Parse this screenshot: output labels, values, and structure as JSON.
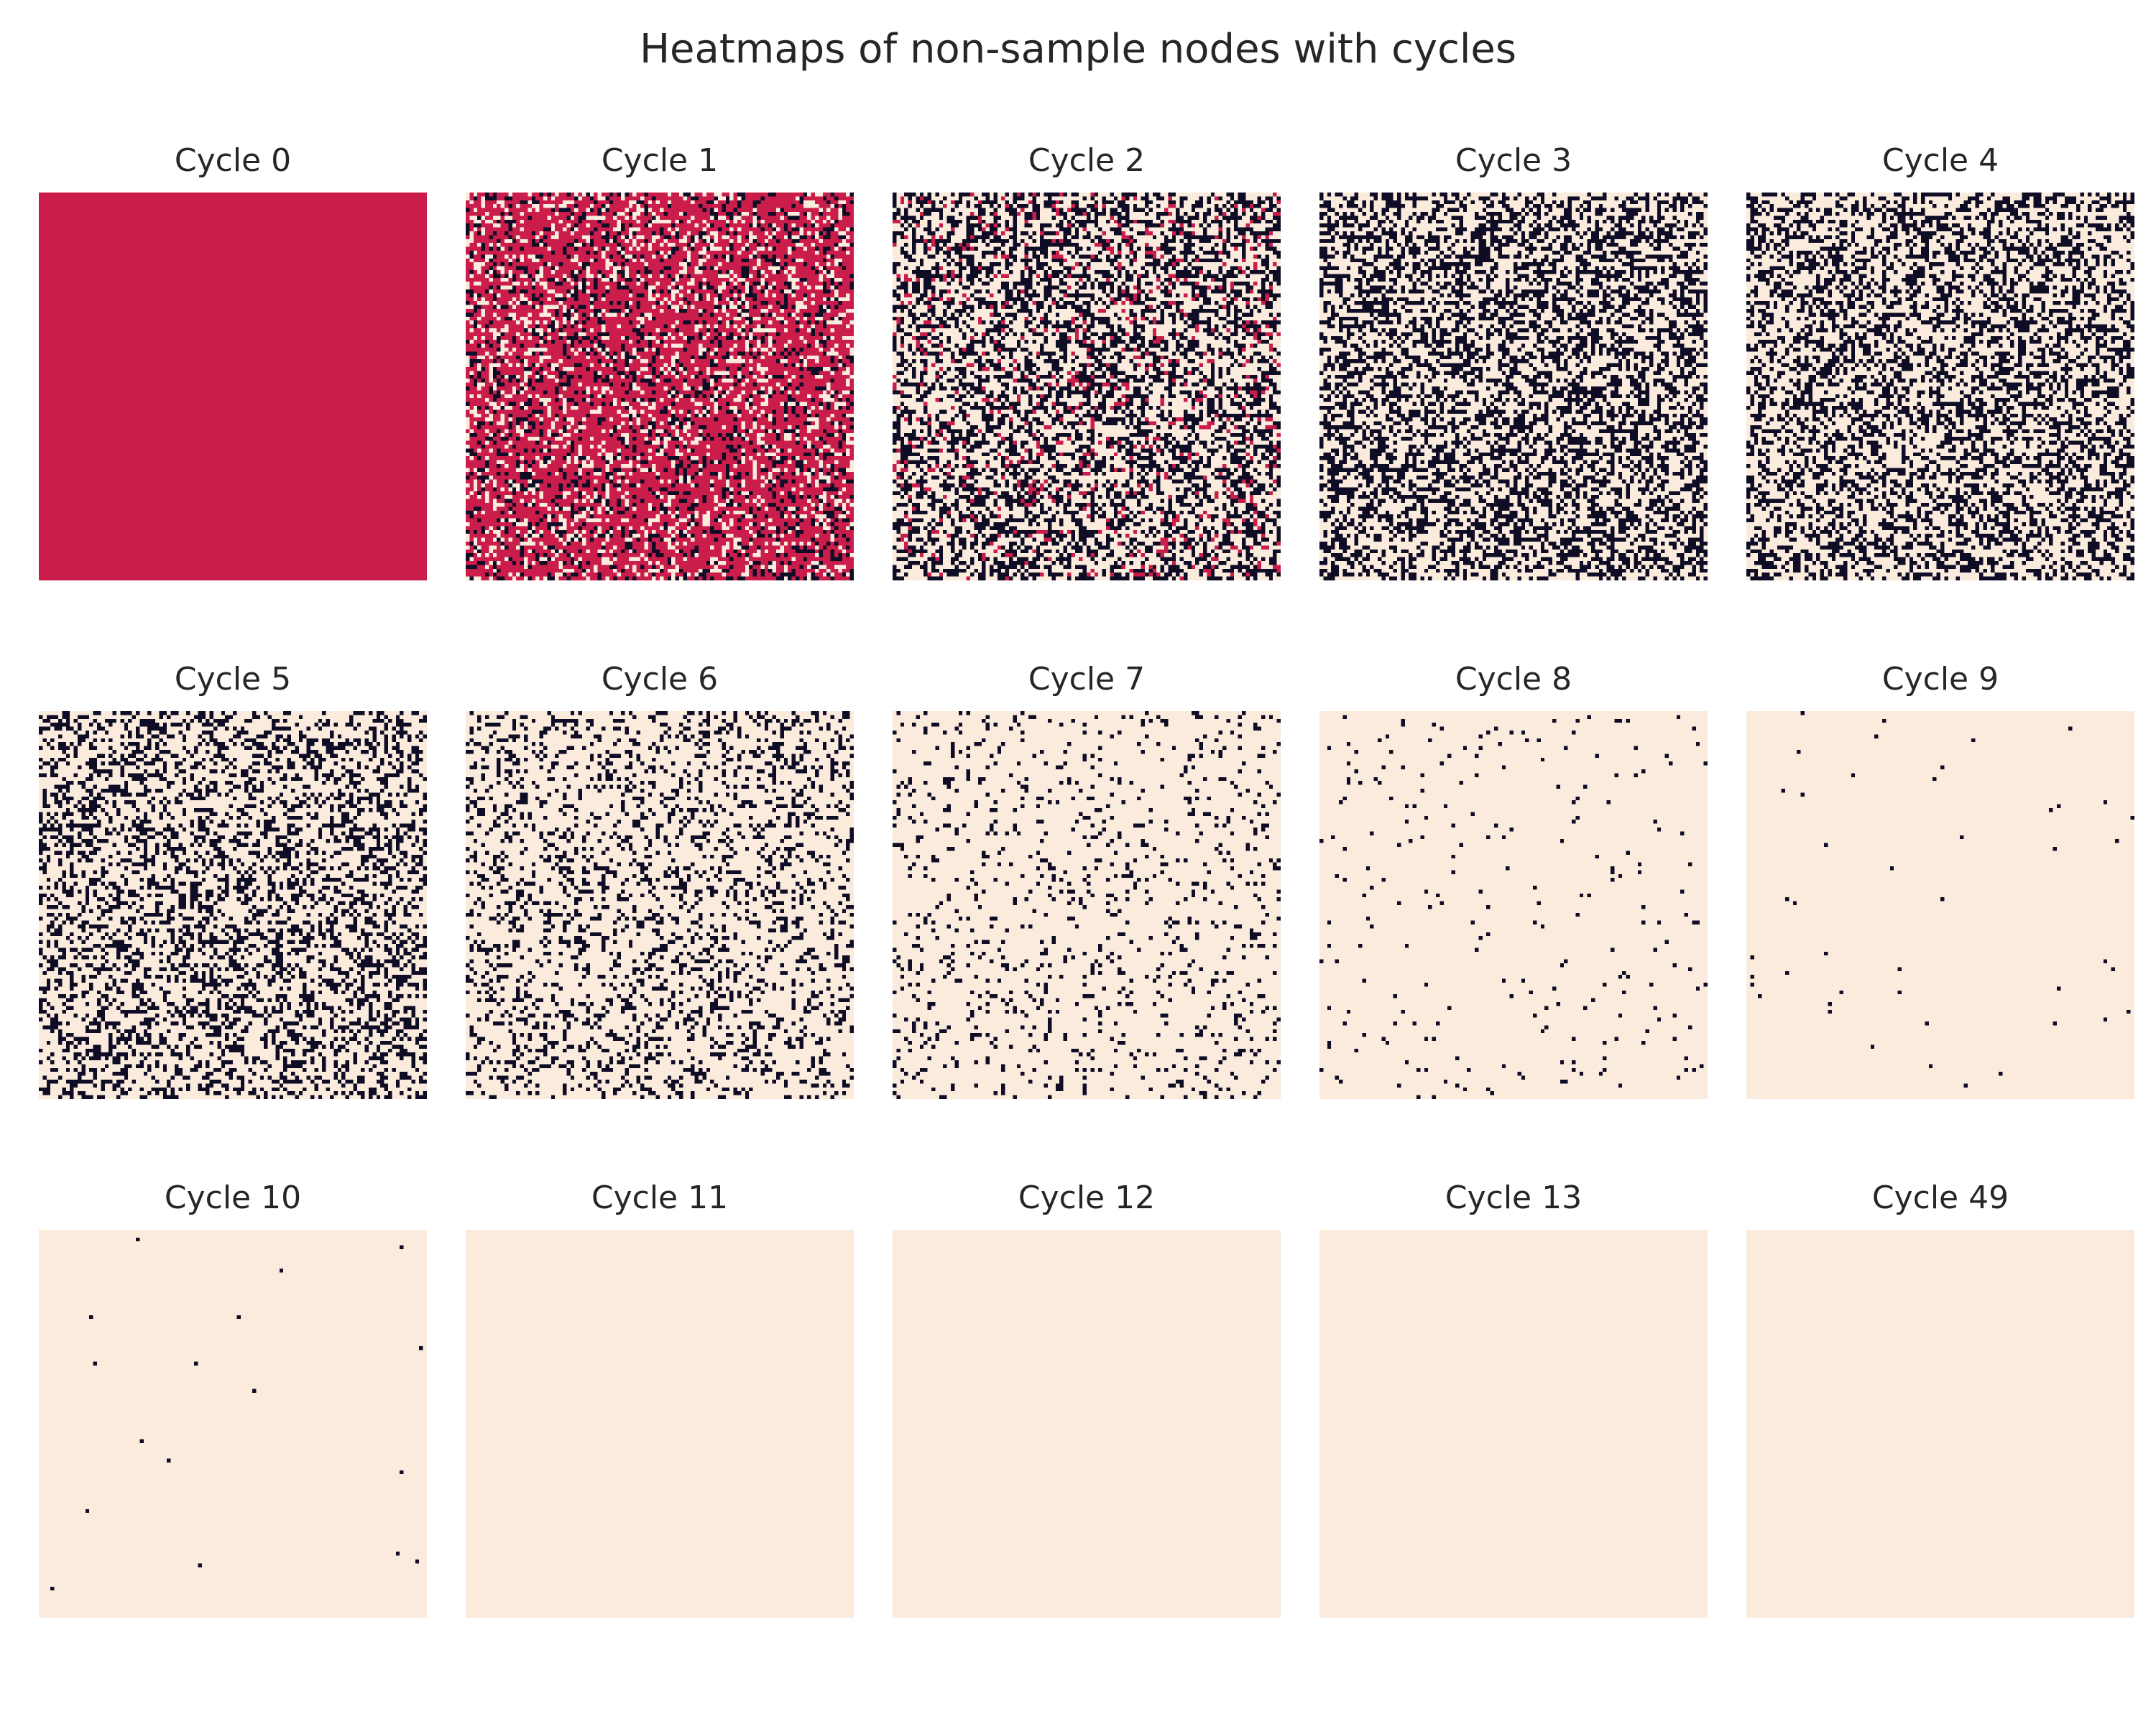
{
  "chart_data": {
    "type": "heatmap",
    "title": "Heatmaps of non-sample nodes with cycles",
    "grid_size": [
      100,
      100
    ],
    "axes_visible": false,
    "colorbar": false,
    "colors": {
      "dark": "#0f0c25",
      "red": "#cb1d4c",
      "light": "#faebdd"
    },
    "panels": [
      {
        "title": "Cycle 0",
        "fractions": {
          "dark": 0.0,
          "red": 1.0,
          "light": 0.0
        }
      },
      {
        "title": "Cycle 1",
        "fractions": {
          "dark": 0.18,
          "red": 0.62,
          "light": 0.2
        }
      },
      {
        "title": "Cycle 2",
        "fractions": {
          "dark": 0.4,
          "red": 0.08,
          "light": 0.52
        }
      },
      {
        "title": "Cycle 3",
        "fractions": {
          "dark": 0.45,
          "red": 0.0,
          "light": 0.55
        }
      },
      {
        "title": "Cycle 4",
        "fractions": {
          "dark": 0.42,
          "red": 0.0,
          "light": 0.58
        }
      },
      {
        "title": "Cycle 5",
        "fractions": {
          "dark": 0.35,
          "red": 0.0,
          "light": 0.65
        }
      },
      {
        "title": "Cycle 6",
        "fractions": {
          "dark": 0.22,
          "red": 0.0,
          "light": 0.78
        }
      },
      {
        "title": "Cycle 7",
        "fractions": {
          "dark": 0.1,
          "red": 0.0,
          "light": 0.9
        }
      },
      {
        "title": "Cycle 8",
        "fractions": {
          "dark": 0.025,
          "red": 0.0,
          "light": 0.975
        }
      },
      {
        "title": "Cycle 9",
        "fractions": {
          "dark": 0.005,
          "red": 0.0,
          "light": 0.995
        }
      },
      {
        "title": "Cycle 10",
        "fractions": {
          "dark": 0.0015,
          "red": 0.0,
          "light": 0.9985
        }
      },
      {
        "title": "Cycle 11",
        "fractions": {
          "dark": 0.0,
          "red": 0.0,
          "light": 1.0
        }
      },
      {
        "title": "Cycle 12",
        "fractions": {
          "dark": 0.0,
          "red": 0.0,
          "light": 1.0
        }
      },
      {
        "title": "Cycle 13",
        "fractions": {
          "dark": 0.0,
          "red": 0.0,
          "light": 1.0
        }
      },
      {
        "title": "Cycle 49",
        "fractions": {
          "dark": 0.0,
          "red": 0.0,
          "light": 1.0
        }
      }
    ]
  }
}
